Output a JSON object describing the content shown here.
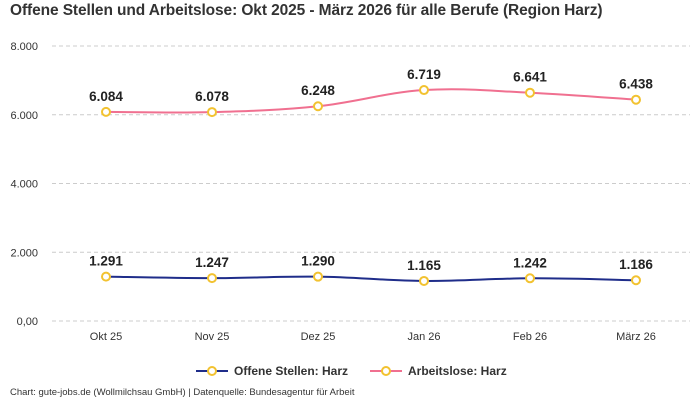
{
  "header": {
    "title": "Offene Stellen und Arbeitslose: Okt 2025 - März 2026 für alle Berufe (Region Harz)"
  },
  "footer": {
    "credits": "Chart: gute-jobs.de (Wollmilchsau GmbH) | Datenquelle: Bundesagentur für Arbeit"
  },
  "colors": {
    "offene_stellen": "#1f2d8a",
    "arbeitslose": "#f07090",
    "marker_stroke": "#f2c230",
    "marker_fill": "#ffffff",
    "grid": "#cccccc"
  },
  "chart_data": {
    "type": "line",
    "title": "Offene Stellen und Arbeitslose: Okt 2025 - März 2026 für alle Berufe (Region Harz)",
    "categories": [
      "Okt 25",
      "Nov 25",
      "Dez 25",
      "Jan 26",
      "Feb 26",
      "März 26"
    ],
    "yticks": [
      "0,00",
      "2.000",
      "4.000",
      "6.000",
      "8.000"
    ],
    "ylim": [
      0,
      8000
    ],
    "grid": true,
    "legend_position": "bottom-center",
    "series": [
      {
        "name": "Offene Stellen: Harz",
        "values": [
          1291,
          1247,
          1290,
          1165,
          1242,
          1186
        ],
        "labels": [
          "1.291",
          "1.247",
          "1.290",
          "1.165",
          "1.242",
          "1.186"
        ]
      },
      {
        "name": "Arbeitslose: Harz",
        "values": [
          6084,
          6078,
          6248,
          6719,
          6641,
          6438
        ],
        "labels": [
          "6.084",
          "6.078",
          "6.248",
          "6.719",
          "6.641",
          "6.438"
        ]
      }
    ]
  }
}
